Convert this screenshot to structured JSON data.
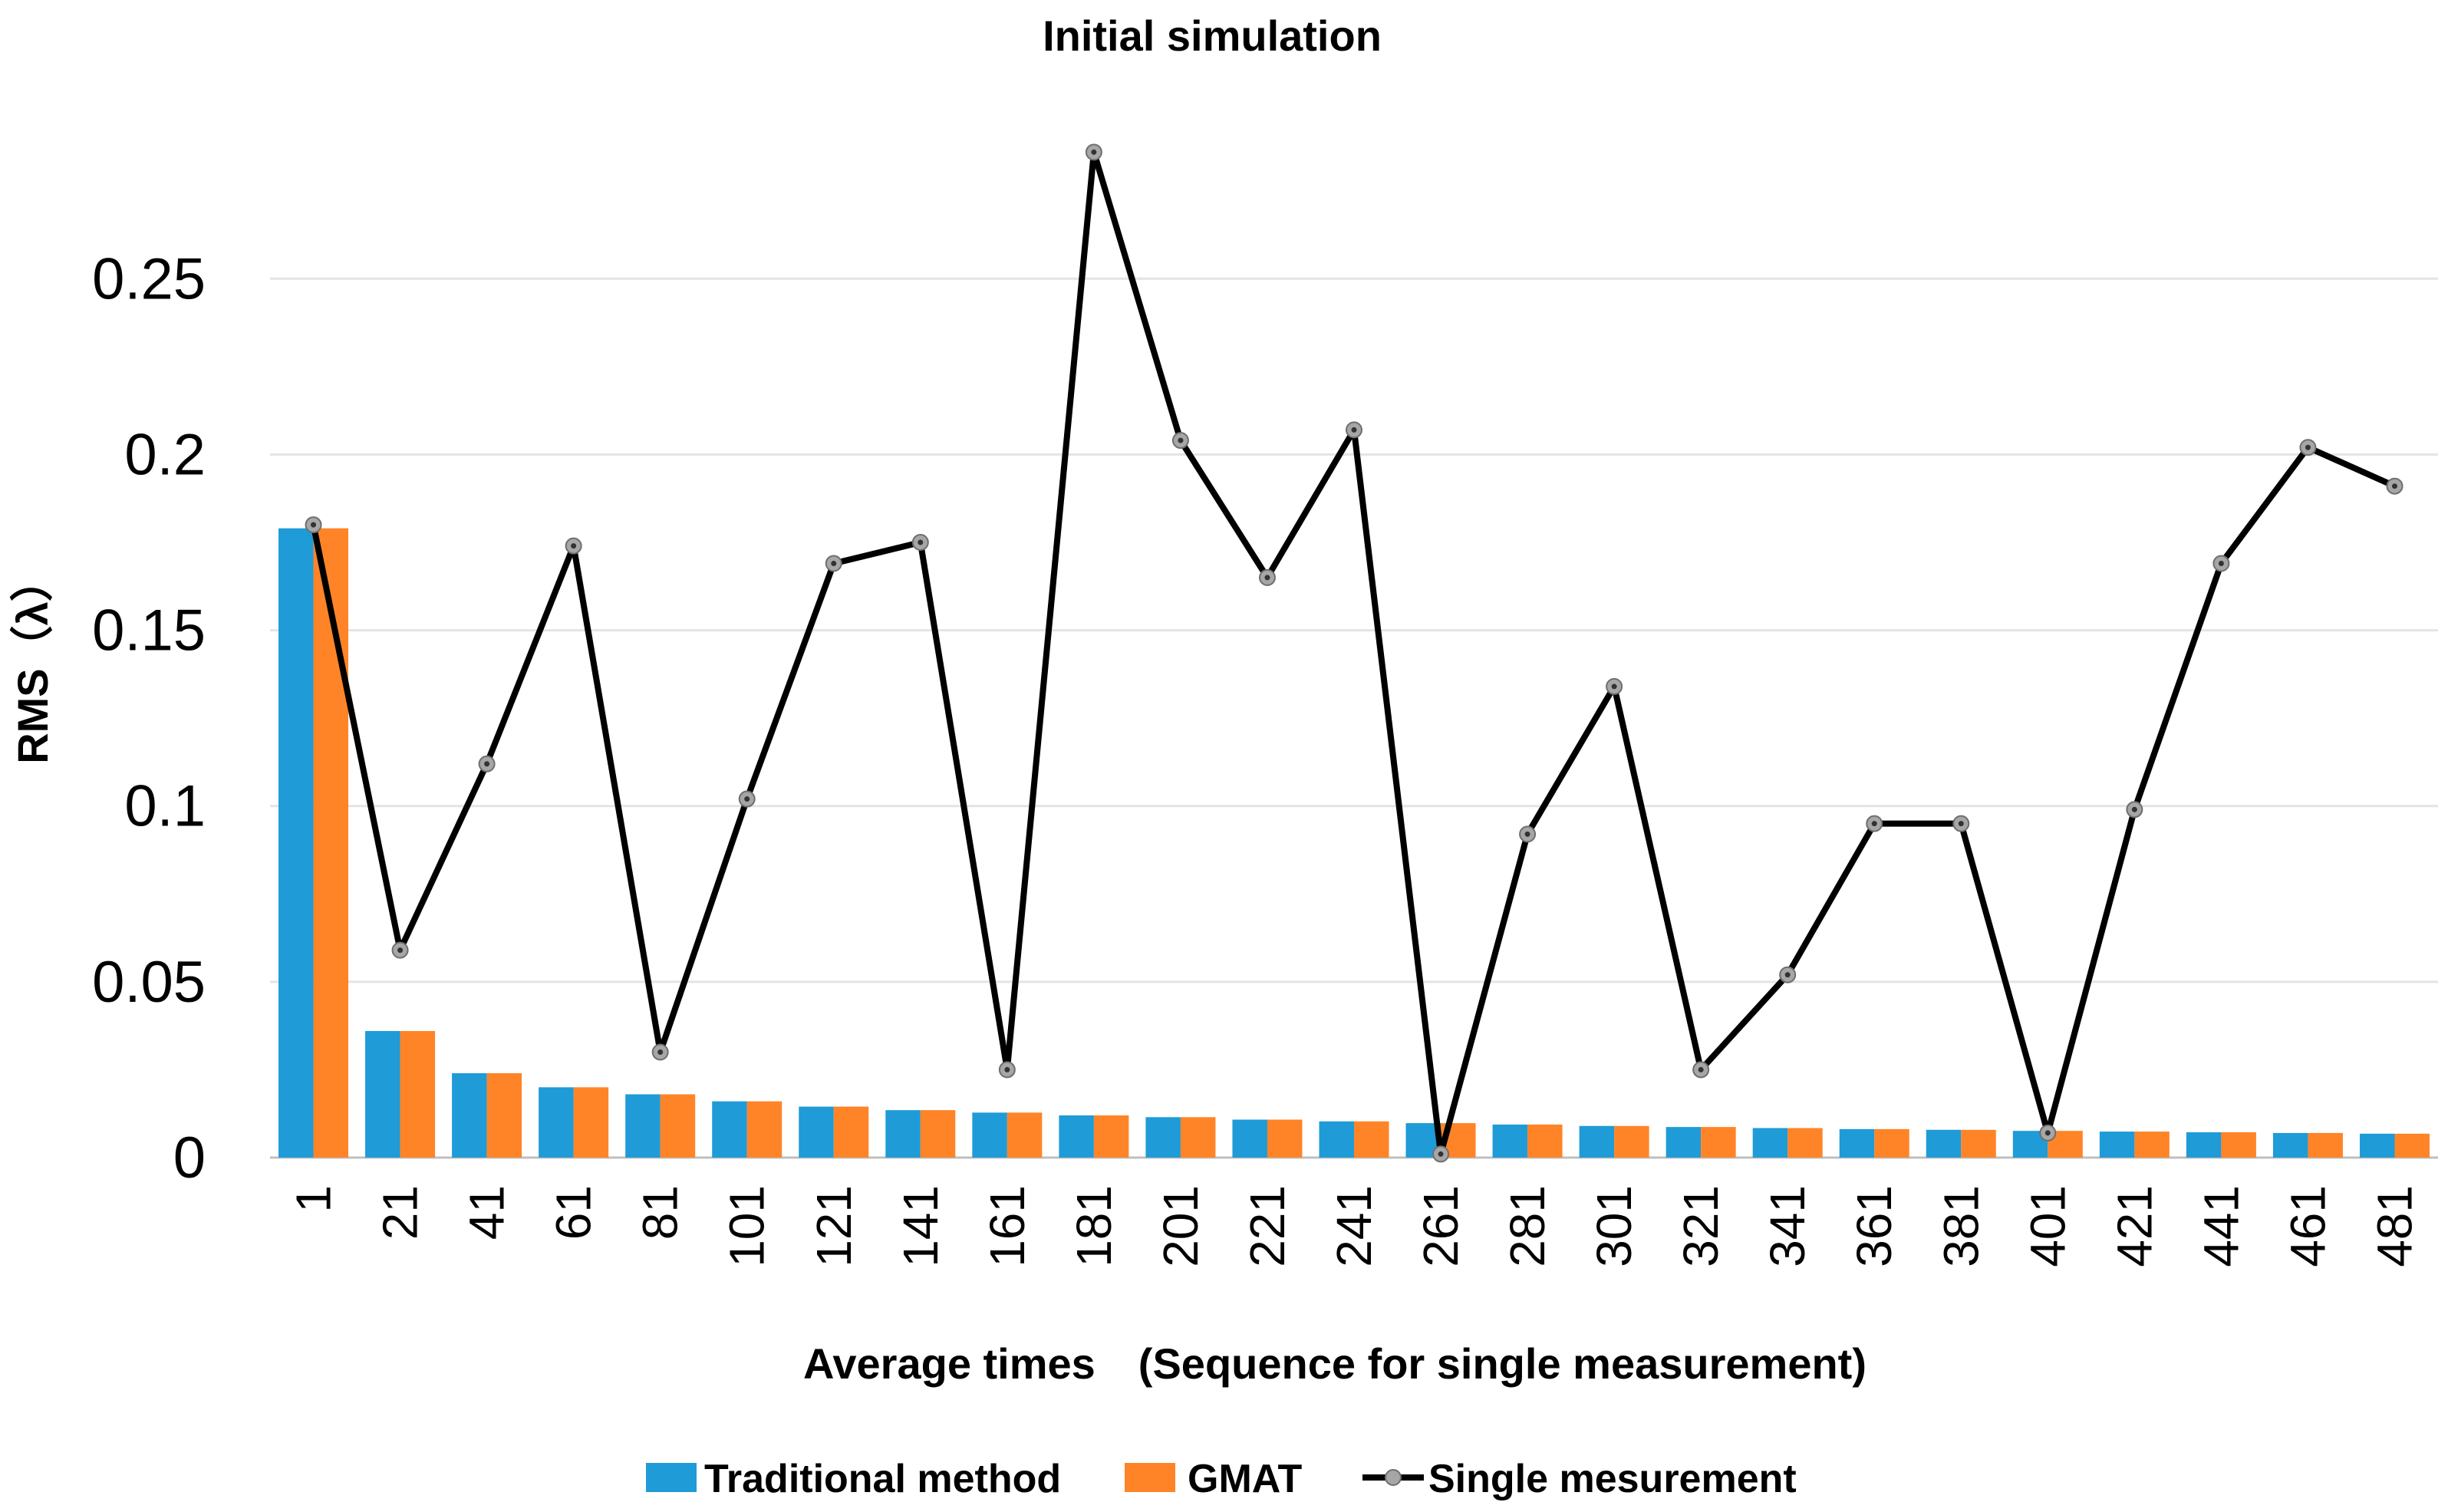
{
  "chart_data": {
    "type": "bar",
    "title": "Initial simulation",
    "xlabel": "Average times　(Sequence for single measurement)",
    "ylabel": "RMS（λ）",
    "ylim": [
      0,
      0.29
    ],
    "yticks": [
      0,
      0.05,
      0.1,
      0.15,
      0.2,
      0.25
    ],
    "ytick_labels": [
      "0",
      "0.05",
      "0.1",
      "0.15",
      "0.2",
      "0.25"
    ],
    "grid": true,
    "legend_position": "bottom",
    "categories": [
      "1",
      "21",
      "41",
      "61",
      "81",
      "101",
      "121",
      "141",
      "161",
      "181",
      "201",
      "221",
      "241",
      "261",
      "281",
      "301",
      "321",
      "341",
      "361",
      "381",
      "401",
      "421",
      "441",
      "461",
      "481"
    ],
    "series": [
      {
        "name": "Traditional method",
        "kind": "bar",
        "color": "#1F9BD7",
        "values": [
          0.179,
          0.036,
          0.024,
          0.02,
          0.018,
          0.016,
          0.0145,
          0.0135,
          0.0128,
          0.012,
          0.0115,
          0.0108,
          0.0103,
          0.0098,
          0.0094,
          0.009,
          0.0087,
          0.0084,
          0.0081,
          0.0079,
          0.0076,
          0.0074,
          0.0072,
          0.007,
          0.0068
        ]
      },
      {
        "name": "GMAT",
        "kind": "bar",
        "color": "#FF8427",
        "values": [
          0.179,
          0.036,
          0.024,
          0.02,
          0.018,
          0.016,
          0.0145,
          0.0135,
          0.0128,
          0.012,
          0.0115,
          0.0108,
          0.0103,
          0.0098,
          0.0094,
          0.009,
          0.0087,
          0.0084,
          0.0081,
          0.0079,
          0.0076,
          0.0074,
          0.0072,
          0.007,
          0.0068
        ]
      },
      {
        "name": "Single mesurement",
        "kind": "line",
        "color": "#000000",
        "marker_color": "#A6A6A6",
        "values": [
          0.18,
          0.059,
          0.112,
          0.174,
          0.03,
          0.102,
          0.169,
          0.175,
          0.025,
          0.286,
          0.204,
          0.165,
          0.207,
          0.001,
          0.092,
          0.134,
          0.025,
          0.052,
          0.095,
          0.095,
          0.007,
          0.099,
          0.169,
          0.202,
          0.191
        ]
      }
    ]
  }
}
